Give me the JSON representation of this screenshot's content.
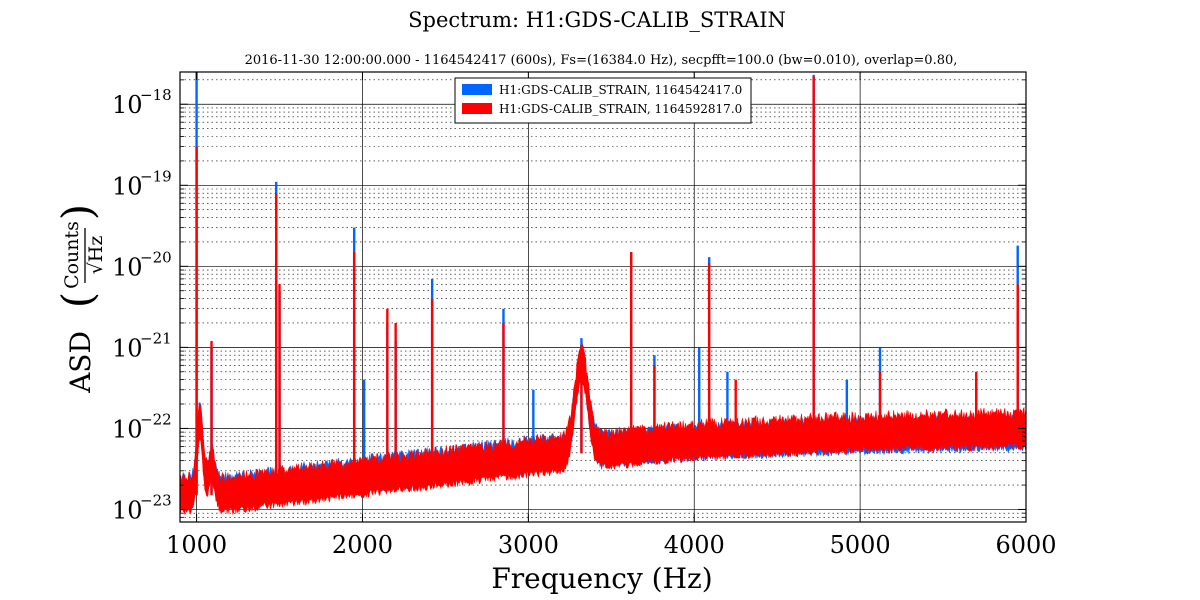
{
  "chart_data": {
    "type": "line",
    "title": "Spectrum: H1:GDS-CALIB_STRAIN",
    "subtitle": "2016-11-30 12:00:00.000 - 1164542417 (600s), Fs=(16384.0 Hz), secpfft=100.0 (bw=0.010), overlap=0.80,",
    "xlabel": "Frequency (Hz)",
    "ylabel": {
      "prefix": "ASD",
      "numerator": "Counts",
      "denominator": "√Hz"
    },
    "xlim": [
      900,
      6000
    ],
    "ylim": [
      7e-24,
      2.5e-18
    ],
    "yscale": "log",
    "grid": true,
    "legend_position": "top-center",
    "x_ticks": [
      "1000",
      "2000",
      "3000",
      "4000",
      "5000",
      "6000"
    ],
    "x_tick_values": [
      1000,
      2000,
      3000,
      4000,
      5000,
      6000
    ],
    "y_ticks": [
      {
        "base": "10",
        "exp": "−23",
        "value": 1e-23
      },
      {
        "base": "10",
        "exp": "−22",
        "value": 1e-22
      },
      {
        "base": "10",
        "exp": "−21",
        "value": 1e-21
      },
      {
        "base": "10",
        "exp": "−20",
        "value": 1e-20
      },
      {
        "base": "10",
        "exp": "−19",
        "value": 1e-19
      },
      {
        "base": "10",
        "exp": "−18",
        "value": 1e-18
      }
    ],
    "series": [
      {
        "name": "H1:GDS-CALIB_STRAIN, 1164542417.0",
        "color": "#0066ff",
        "baseline": [
          [
            900,
            1.6e-23
          ],
          [
            1200,
            1.6e-23
          ],
          [
            2000,
            2.6e-23
          ],
          [
            3000,
            4.5e-23
          ],
          [
            4000,
            6.5e-23
          ],
          [
            5000,
            7.8e-23
          ],
          [
            6000,
            8.5e-23
          ]
        ],
        "noise_band_decades": 0.22,
        "peaks": [
          {
            "x": 1000,
            "y": 2.5e-18
          },
          {
            "x": 1090,
            "y": 1e-21
          },
          {
            "x": 1480,
            "y": 1.1e-19
          },
          {
            "x": 1500,
            "y": 5e-21
          },
          {
            "x": 1950,
            "y": 3e-20
          },
          {
            "x": 2010,
            "y": 4e-22
          },
          {
            "x": 2150,
            "y": 2e-21
          },
          {
            "x": 2200,
            "y": 1.2e-21
          },
          {
            "x": 2420,
            "y": 7e-21
          },
          {
            "x": 2850,
            "y": 3e-21
          },
          {
            "x": 3030,
            "y": 3e-22
          },
          {
            "x": 3320,
            "y": 1.3e-21
          },
          {
            "x": 3620,
            "y": 1.5e-20
          },
          {
            "x": 3760,
            "y": 8e-22
          },
          {
            "x": 4030,
            "y": 1e-21
          },
          {
            "x": 4090,
            "y": 1.3e-20
          },
          {
            "x": 4200,
            "y": 5e-22
          },
          {
            "x": 4720,
            "y": 2.3e-18
          },
          {
            "x": 4920,
            "y": 4e-22
          },
          {
            "x": 5120,
            "y": 1e-21
          },
          {
            "x": 5700,
            "y": 4e-22
          },
          {
            "x": 5950,
            "y": 1.8e-20
          }
        ]
      },
      {
        "name": "H1:GDS-CALIB_STRAIN, 1164592817.0",
        "color": "#ff0000",
        "baseline": [
          [
            900,
            1.5e-23
          ],
          [
            1200,
            1.5e-23
          ],
          [
            2000,
            2.4e-23
          ],
          [
            3000,
            4.2e-23
          ],
          [
            4000,
            6.8e-23
          ],
          [
            5000,
            8.5e-23
          ],
          [
            6000,
            9.5e-23
          ]
        ],
        "noise_band_decades": 0.24,
        "peaks": [
          {
            "x": 1000,
            "y": 3e-19
          },
          {
            "x": 1090,
            "y": 1.2e-21
          },
          {
            "x": 1480,
            "y": 8e-20
          },
          {
            "x": 1500,
            "y": 6e-21
          },
          {
            "x": 1950,
            "y": 1.5e-20
          },
          {
            "x": 2150,
            "y": 3e-21
          },
          {
            "x": 2200,
            "y": 2e-21
          },
          {
            "x": 2420,
            "y": 4e-21
          },
          {
            "x": 2850,
            "y": 2e-21
          },
          {
            "x": 3320,
            "y": 1e-21
          },
          {
            "x": 3620,
            "y": 1.5e-20
          },
          {
            "x": 3760,
            "y": 6e-22
          },
          {
            "x": 4090,
            "y": 1.1e-20
          },
          {
            "x": 4250,
            "y": 4e-22
          },
          {
            "x": 4720,
            "y": 2.2e-18
          },
          {
            "x": 5120,
            "y": 5e-22
          },
          {
            "x": 5700,
            "y": 5e-22
          },
          {
            "x": 5950,
            "y": 6e-21
          }
        ]
      }
    ]
  }
}
